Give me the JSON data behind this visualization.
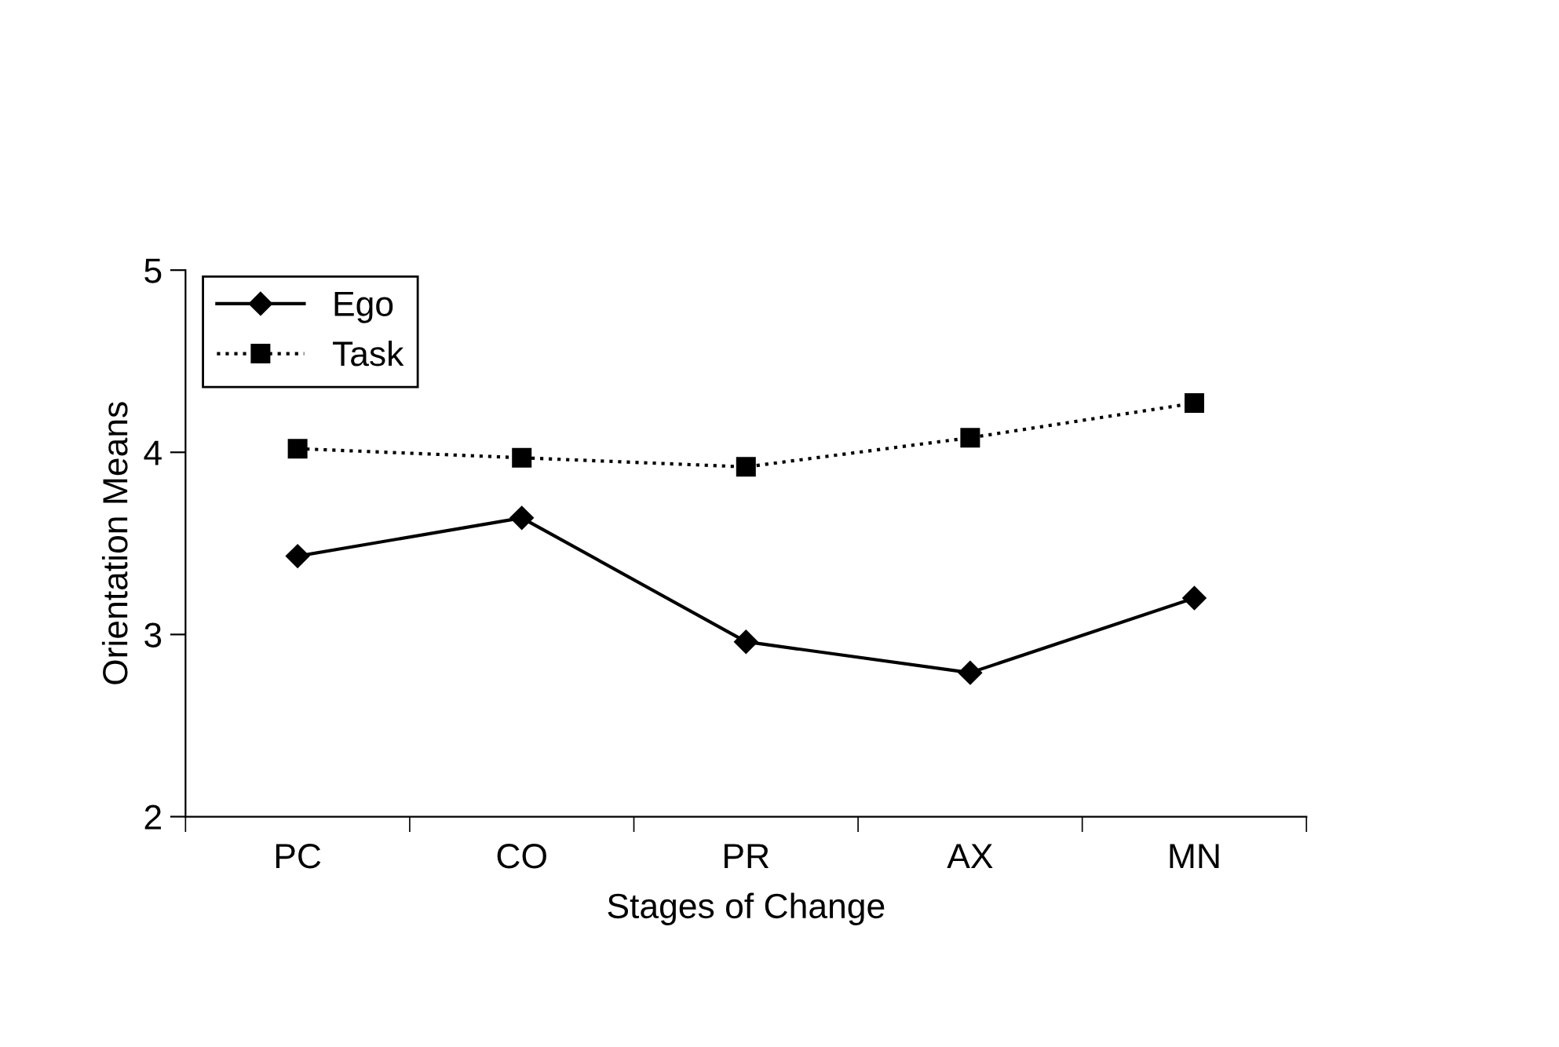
{
  "chart_data": {
    "type": "line",
    "xlabel": "Stages of Change",
    "ylabel": "Orientation Means",
    "categories": [
      "PC",
      "CO",
      "PR",
      "AX",
      "MN"
    ],
    "series": [
      {
        "name": "Ego",
        "color": "#000000",
        "marker": "diamond",
        "line_style": "solid",
        "values": [
          3.43,
          3.64,
          2.96,
          2.79,
          3.2
        ]
      },
      {
        "name": "Task",
        "color": "#000000",
        "marker": "square",
        "line_style": "dotted",
        "values": [
          4.02,
          3.97,
          3.92,
          4.08,
          4.27
        ]
      }
    ],
    "ylim": [
      2,
      5
    ],
    "yticks": [
      2,
      3,
      4,
      5
    ],
    "grid": false,
    "legend": "top left"
  }
}
